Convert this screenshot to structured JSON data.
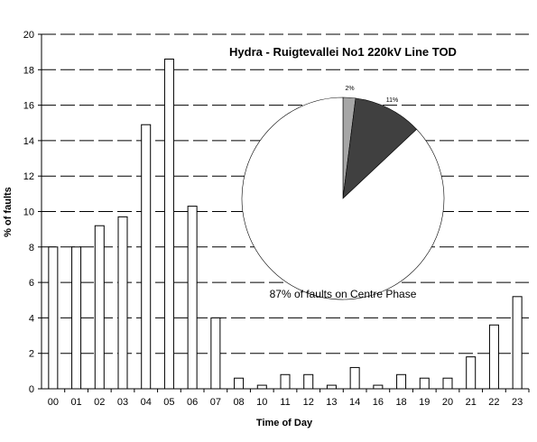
{
  "chart_data": [
    {
      "type": "bar",
      "title": "Hydra - Ruigtevallei No1 220kV Line TOD",
      "xlabel": "Time of Day",
      "ylabel": "% of faults",
      "ylim": [
        0,
        20
      ],
      "yticks": [
        "0",
        "2",
        "4",
        "6",
        "8",
        "10",
        "12",
        "14",
        "16",
        "18",
        "20"
      ],
      "grid": "horizontal dashed",
      "categories": [
        "00",
        "01",
        "02",
        "03",
        "04",
        "05",
        "06",
        "07",
        "08",
        "10",
        "11",
        "12",
        "13",
        "14",
        "16",
        "18",
        "19",
        "20",
        "21",
        "22",
        "23"
      ],
      "values": [
        8.0,
        8.0,
        9.2,
        9.7,
        14.9,
        18.6,
        10.3,
        4.0,
        0.6,
        0.2,
        0.8,
        0.8,
        0.2,
        1.2,
        0.2,
        0.8,
        0.6,
        0.6,
        1.8,
        3.6,
        5.2
      ]
    },
    {
      "type": "pie",
      "slices": [
        {
          "label": "2%",
          "value": 2,
          "color": "#a6a6a6"
        },
        {
          "label": "11%",
          "value": 11,
          "color": "#404040"
        },
        {
          "label": "",
          "value": 87,
          "color": "#ffffff"
        }
      ],
      "caption": "87% of faults on Centre Phase"
    }
  ]
}
